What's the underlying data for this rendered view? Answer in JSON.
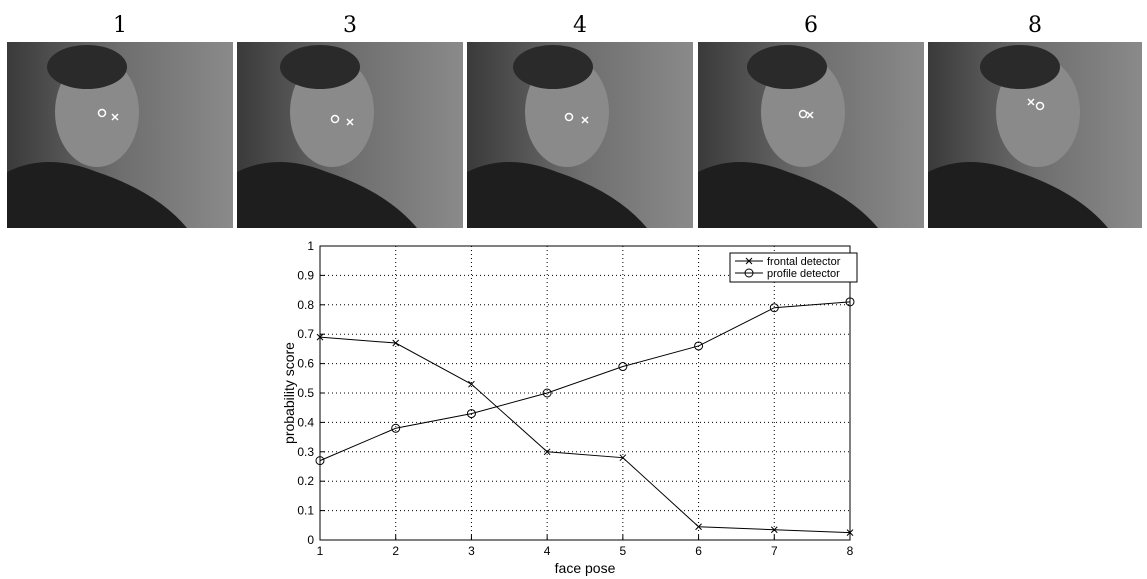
{
  "images": [
    {
      "label": "1"
    },
    {
      "label": "3"
    },
    {
      "label": "4"
    },
    {
      "label": "6"
    },
    {
      "label": "8"
    }
  ],
  "chart_data": {
    "type": "line",
    "x": [
      1,
      2,
      3,
      4,
      5,
      6,
      7,
      8
    ],
    "series": [
      {
        "name": "frontal detector",
        "color": "#000000",
        "marker": "x",
        "values": [
          0.69,
          0.67,
          0.53,
          0.3,
          0.28,
          0.045,
          0.035,
          0.025
        ]
      },
      {
        "name": "profile detector",
        "color": "#000000",
        "marker": "o",
        "values": [
          0.27,
          0.38,
          0.43,
          0.5,
          0.59,
          0.66,
          0.79,
          0.81
        ]
      }
    ],
    "xlabel": "face pose",
    "ylabel": "probability score",
    "xlim": [
      1,
      8
    ],
    "ylim": [
      0,
      1
    ],
    "xticks": [
      1,
      2,
      3,
      4,
      5,
      6,
      7,
      8
    ],
    "yticks": [
      0,
      0.1,
      0.2,
      0.3,
      0.4,
      0.5,
      0.6,
      0.7,
      0.8,
      0.9,
      1
    ],
    "grid": true,
    "legend": "top-right"
  }
}
